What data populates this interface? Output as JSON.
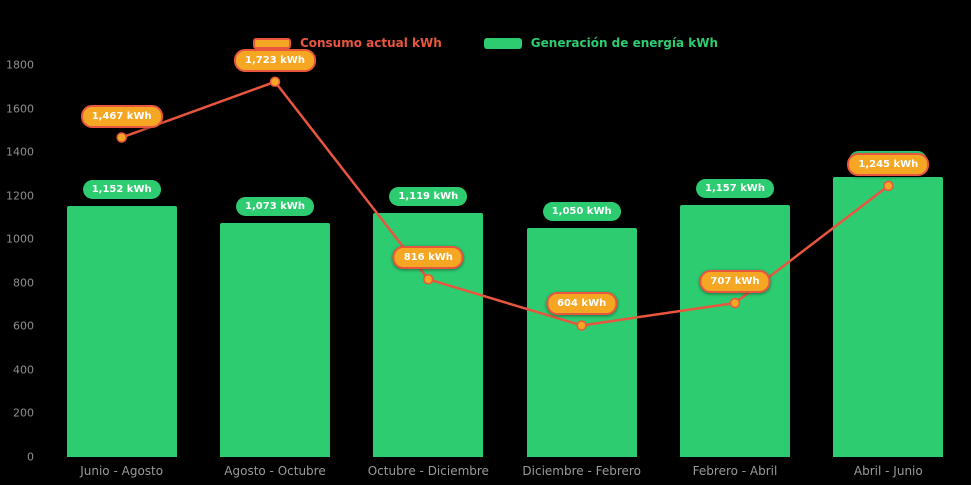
{
  "legend": {
    "items": [
      {
        "label": "Consumo actual kWh",
        "text_color": "#E8563F",
        "swatch_fill": "#F5A623",
        "swatch_border": "#E8563F"
      },
      {
        "label": "Generación de energía kWh",
        "text_color": "#2ECC71",
        "swatch_fill": "#2ECC71"
      }
    ]
  },
  "chart_data": {
    "type": "bar+line",
    "categories": [
      "Junio - Agosto",
      "Agosto - Octubre",
      "Octubre - Diciembre",
      "Diciembre - Febrero",
      "Febrero - Abril",
      "Abril - Junio"
    ],
    "series": [
      {
        "name": "Consumo actual kWh",
        "type": "line",
        "color": "#E8563F",
        "marker_fill": "#F5A623",
        "marker_stroke": "#E8563F",
        "values": [
          1467,
          1723,
          816,
          604,
          707,
          1245
        ],
        "labels": [
          "1,467 kWh",
          "1,723 kWh",
          "816 kWh",
          "604 kWh",
          "707 kWh",
          "1,245 kWh"
        ]
      },
      {
        "name": "Generación de energía kWh",
        "type": "bar",
        "color": "#2ECC71",
        "values": [
          1152,
          1073,
          1119,
          1050,
          1157,
          1284
        ],
        "labels": [
          "1,152 kWh",
          "1,073 kWh",
          "1,119 kWh",
          "1,050 kWh",
          "1,157 kWh",
          "1,284 kWh"
        ]
      }
    ],
    "title": "",
    "xlabel": "",
    "ylabel": "",
    "ylim": [
      0,
      1800
    ],
    "yticks": [
      0,
      200,
      400,
      600,
      800,
      1000,
      1200,
      1400,
      1600,
      1800
    ],
    "grid": false,
    "legend_position": "top",
    "background_color": "#000000",
    "axis_text_color": "#8f8f8f",
    "value_label_text_color": "#ffffff"
  }
}
